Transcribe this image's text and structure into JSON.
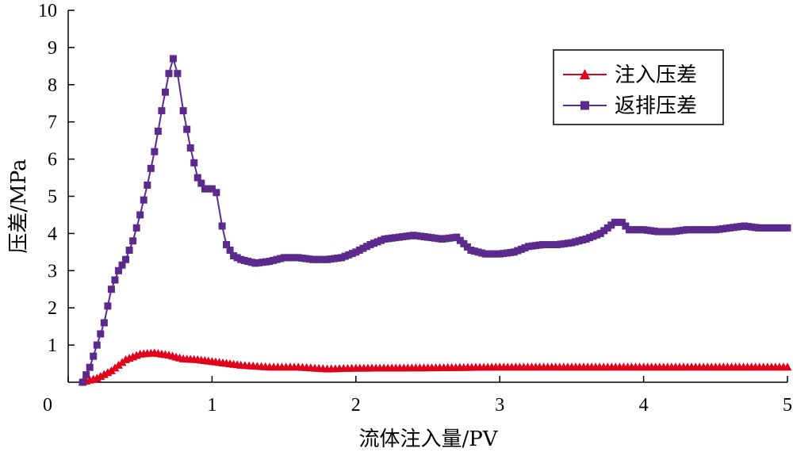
{
  "chart_data": {
    "type": "line",
    "title": "",
    "xlabel": "流体注入量/PV",
    "ylabel": "压差/MPa",
    "xlim": [
      0,
      5
    ],
    "ylim": [
      0,
      10
    ],
    "xticks": [
      0,
      1,
      2,
      3,
      4,
      5
    ],
    "yticks": [
      1,
      2,
      3,
      4,
      5,
      6,
      7,
      8,
      9,
      10
    ],
    "origin_label": "0",
    "grid": false,
    "legend_position": "top-right",
    "series": [
      {
        "name": "注入压差",
        "color": "#e0001b",
        "marker": "triangle",
        "points": [
          [
            0.1,
            0.0
          ],
          [
            0.2,
            0.1
          ],
          [
            0.3,
            0.3
          ],
          [
            0.4,
            0.6
          ],
          [
            0.5,
            0.75
          ],
          [
            0.6,
            0.78
          ],
          [
            0.7,
            0.72
          ],
          [
            0.8,
            0.62
          ],
          [
            0.9,
            0.6
          ],
          [
            1.0,
            0.55
          ],
          [
            1.1,
            0.5
          ],
          [
            1.2,
            0.45
          ],
          [
            1.4,
            0.4
          ],
          [
            1.6,
            0.4
          ],
          [
            1.8,
            0.35
          ],
          [
            2.0,
            0.37
          ],
          [
            2.5,
            0.38
          ],
          [
            3.0,
            0.4
          ],
          [
            3.5,
            0.4
          ],
          [
            4.0,
            0.4
          ],
          [
            4.5,
            0.4
          ],
          [
            5.0,
            0.4
          ]
        ]
      },
      {
        "name": "返排压差",
        "color": "#5b2a8c",
        "marker": "square",
        "points": [
          [
            0.1,
            0.0
          ],
          [
            0.15,
            0.4
          ],
          [
            0.2,
            1.0
          ],
          [
            0.25,
            1.6
          ],
          [
            0.3,
            2.5
          ],
          [
            0.35,
            3.0
          ],
          [
            0.4,
            3.3
          ],
          [
            0.45,
            3.8
          ],
          [
            0.5,
            4.5
          ],
          [
            0.55,
            5.3
          ],
          [
            0.6,
            6.2
          ],
          [
            0.65,
            7.3
          ],
          [
            0.7,
            8.3
          ],
          [
            0.73,
            8.7
          ],
          [
            0.76,
            8.3
          ],
          [
            0.8,
            7.3
          ],
          [
            0.85,
            6.3
          ],
          [
            0.9,
            5.5
          ],
          [
            0.95,
            5.2
          ],
          [
            1.0,
            5.2
          ],
          [
            1.03,
            5.1
          ],
          [
            1.07,
            4.2
          ],
          [
            1.1,
            3.7
          ],
          [
            1.15,
            3.4
          ],
          [
            1.2,
            3.3
          ],
          [
            1.3,
            3.2
          ],
          [
            1.4,
            3.25
          ],
          [
            1.5,
            3.35
          ],
          [
            1.6,
            3.35
          ],
          [
            1.7,
            3.3
          ],
          [
            1.8,
            3.3
          ],
          [
            1.9,
            3.35
          ],
          [
            2.0,
            3.5
          ],
          [
            2.1,
            3.7
          ],
          [
            2.2,
            3.85
          ],
          [
            2.3,
            3.9
          ],
          [
            2.4,
            3.95
          ],
          [
            2.5,
            3.9
          ],
          [
            2.6,
            3.85
          ],
          [
            2.7,
            3.9
          ],
          [
            2.8,
            3.55
          ],
          [
            2.9,
            3.45
          ],
          [
            3.0,
            3.45
          ],
          [
            3.1,
            3.5
          ],
          [
            3.2,
            3.65
          ],
          [
            3.3,
            3.7
          ],
          [
            3.4,
            3.7
          ],
          [
            3.5,
            3.75
          ],
          [
            3.6,
            3.85
          ],
          [
            3.7,
            4.0
          ],
          [
            3.8,
            4.3
          ],
          [
            3.85,
            4.3
          ],
          [
            3.9,
            4.1
          ],
          [
            4.0,
            4.1
          ],
          [
            4.1,
            4.05
          ],
          [
            4.2,
            4.05
          ],
          [
            4.3,
            4.1
          ],
          [
            4.4,
            4.1
          ],
          [
            4.5,
            4.1
          ],
          [
            4.6,
            4.15
          ],
          [
            4.7,
            4.2
          ],
          [
            4.8,
            4.15
          ],
          [
            4.9,
            4.15
          ],
          [
            5.0,
            4.15
          ]
        ]
      }
    ]
  }
}
